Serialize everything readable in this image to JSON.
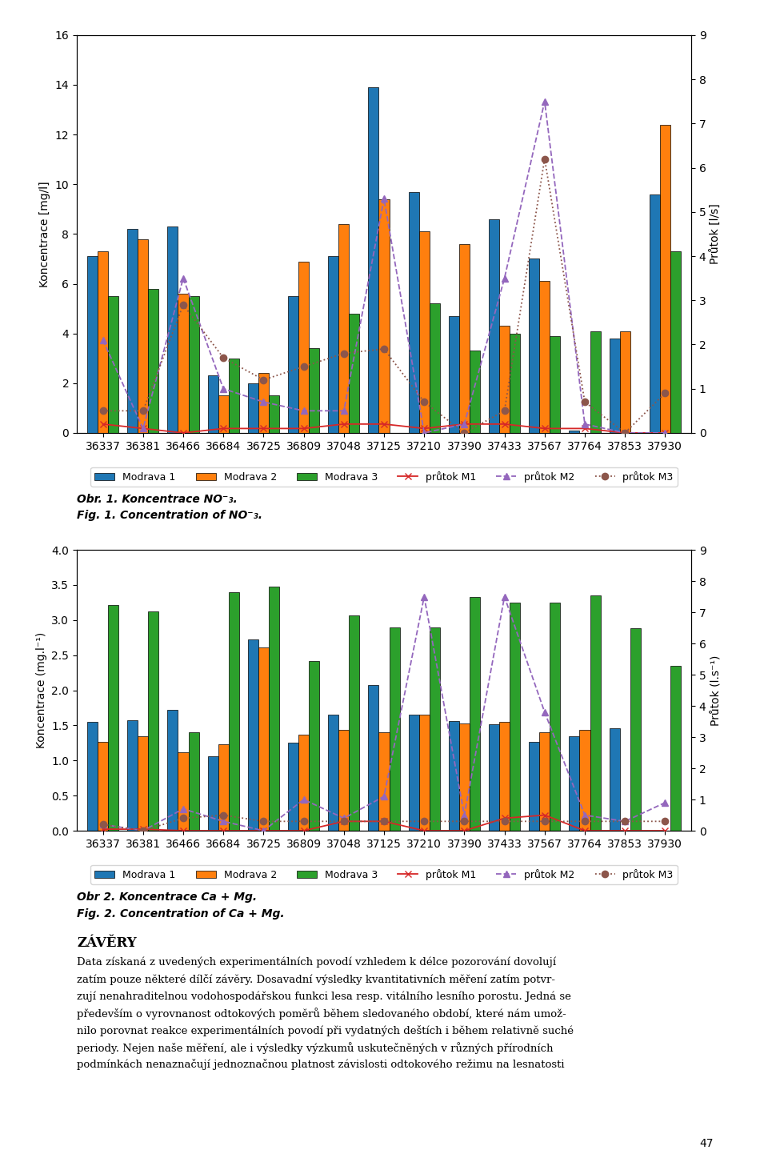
{
  "chart_data": [
    {
      "type": "bar",
      "title": "Obr. 1. Koncentrace NO⁻₃.",
      "subtitle": "Fig. 1. Concentration of NO⁻₃.",
      "categories": [
        "36337",
        "36381",
        "36466",
        "36684",
        "36725",
        "36809",
        "37048",
        "37125",
        "37210",
        "37390",
        "37433",
        "37567",
        "37764",
        "37853",
        "37930"
      ],
      "y_label": "Koncentrace [mg/l]",
      "y2_label": "Průtok [l/s]",
      "ylim": [
        0,
        16
      ],
      "yticks": [
        0,
        2,
        4,
        6,
        8,
        10,
        12,
        14,
        16
      ],
      "y2lim": [
        0,
        9
      ],
      "y2ticks": [
        0,
        1,
        2,
        3,
        4,
        5,
        6,
        7,
        8,
        9
      ],
      "grid": false,
      "legend": "upper center",
      "series": [
        {
          "name": "Modrava 1",
          "type": "bar",
          "values": [
            7.1,
            8.2,
            8.3,
            2.3,
            2.0,
            5.5,
            7.1,
            13.9,
            9.7,
            4.7,
            8.6,
            7.0,
            0.1,
            3.8,
            9.6
          ]
        },
        {
          "name": "Modrava 2",
          "type": "bar",
          "values": [
            7.3,
            7.8,
            5.6,
            1.5,
            2.4,
            6.9,
            8.4,
            9.4,
            8.1,
            7.6,
            4.3,
            6.1,
            0.0,
            4.1,
            12.4
          ]
        },
        {
          "name": "Modrava 3",
          "type": "bar",
          "values": [
            5.5,
            5.8,
            5.5,
            3.0,
            1.5,
            3.4,
            4.8,
            0.0,
            5.2,
            3.3,
            4.0,
            3.9,
            4.1,
            0.0,
            7.3
          ]
        },
        {
          "name": "průtok M1",
          "type": "line",
          "axis": "y2",
          "marker": "x",
          "line_style": "solid",
          "values": [
            0.2,
            0.1,
            0.0,
            0.1,
            0.1,
            0.1,
            0.2,
            0.2,
            0.1,
            0.2,
            0.2,
            0.1,
            0.1,
            0.0,
            0.0
          ]
        },
        {
          "name": "průtok M2",
          "type": "line",
          "axis": "y2",
          "marker": "triangle",
          "line_style": "dashed",
          "values": [
            2.1,
            0.1,
            3.5,
            1.0,
            0.7,
            0.5,
            0.5,
            5.3,
            0.0,
            0.2,
            3.5,
            7.5,
            0.2,
            0.0,
            0.0
          ]
        },
        {
          "name": "průtok M3",
          "type": "line",
          "axis": "y2",
          "marker": "circle",
          "line_style": "dotted",
          "values": [
            0.5,
            0.5,
            2.9,
            1.7,
            1.2,
            1.5,
            1.8,
            1.9,
            0.7,
            0.0,
            0.5,
            6.2,
            0.7,
            0.0,
            0.9
          ]
        }
      ]
    },
    {
      "type": "bar",
      "title": "Obr 2. Koncentrace Ca + Mg.",
      "subtitle": "Fig. 2. Concentration of Ca + Mg.",
      "categories": [
        "36337",
        "36381",
        "36466",
        "36684",
        "36725",
        "36809",
        "37048",
        "37125",
        "37210",
        "37390",
        "37433",
        "37567",
        "37764",
        "37853",
        "37930"
      ],
      "y_label": "Koncentrace (mg.l⁻¹)",
      "y2_label": "Průtok (l.s⁻¹)",
      "ylim": [
        0,
        4
      ],
      "yticks": [
        {
          "value": 0,
          "label": "0.0"
        },
        0.5,
        {
          "value": 1,
          "label": "1.0"
        },
        1.5,
        {
          "value": 2,
          "label": "2.0"
        },
        2.5,
        {
          "value": 3,
          "label": "3.0"
        },
        3.5,
        {
          "value": 4,
          "label": "4.0"
        }
      ],
      "y2lim": [
        0,
        9
      ],
      "y2ticks": [
        0,
        1,
        2,
        3,
        4,
        5,
        6,
        7,
        8,
        9
      ],
      "grid": false,
      "legend": "upper center",
      "series": [
        {
          "name": "Modrava 1",
          "type": "bar",
          "values": [
            1.55,
            1.57,
            1.72,
            1.06,
            2.72,
            1.25,
            1.65,
            2.07,
            1.65,
            1.56,
            1.52,
            1.27,
            1.35,
            1.46,
            0.0
          ]
        },
        {
          "name": "Modrava 2",
          "type": "bar",
          "values": [
            1.27,
            1.35,
            1.12,
            1.23,
            2.61,
            1.37,
            1.44,
            1.4,
            1.65,
            1.53,
            1.55,
            1.4,
            1.44,
            0.0,
            0.0
          ]
        },
        {
          "name": "Modrava 3",
          "type": "bar",
          "values": [
            3.22,
            3.12,
            1.4,
            3.4,
            3.48,
            2.42,
            3.07,
            2.9,
            2.9,
            3.33,
            3.25,
            3.25,
            3.35,
            2.88,
            2.35
          ]
        },
        {
          "name": "průtok M1",
          "type": "line",
          "axis": "y2",
          "marker": "x",
          "line_style": "solid",
          "values": [
            0.05,
            0.05,
            0.0,
            0.0,
            0.0,
            0.0,
            0.3,
            0.3,
            0.0,
            0.0,
            0.4,
            0.5,
            0.0,
            0.0,
            0.0
          ]
        },
        {
          "name": "průtok M2",
          "type": "line",
          "axis": "y2",
          "marker": "triangle",
          "line_style": "dashed",
          "values": [
            0.2,
            0.0,
            0.7,
            0.3,
            0.0,
            1.0,
            0.4,
            1.1,
            7.5,
            0.5,
            7.5,
            3.8,
            0.5,
            0.3,
            0.9
          ]
        },
        {
          "name": "průtok M3",
          "type": "line",
          "axis": "y2",
          "marker": "circle",
          "line_style": "dotted",
          "values": [
            0.2,
            0.0,
            0.4,
            0.5,
            0.3,
            0.3,
            0.3,
            0.3,
            0.3,
            0.3,
            0.3,
            0.3,
            0.3,
            0.3,
            0.3
          ]
        }
      ],
      "annotations": [
        "ZÁVĚRY",
        "Data získaná z uvedených experimentálních povodí vzhledem k délce pozorování dovolují",
        "zatím pouze některé dílčí závěry. Dosavadní výsledky kvantitativních měření zatím potvr-",
        "zují nenahraditelnou vodohospodářskou funkci lesa resp. vitálního lesního porostu. Jedná se",
        "především o vyrovnanost odtokových poměrů během sledovaného období, které nám umož-",
        "nilo porovnat reakce experimentálních povodí při vydatných deštích i během relativně suché",
        "periody. Nejen naše měření, ale i výsledky výzkumů uskutečněných v různých přírodních",
        "podmínkách nenaznačují jednoznačnou platnost závislosti odtokového režimu na lesnatosti",
        "47"
      ]
    }
  ]
}
